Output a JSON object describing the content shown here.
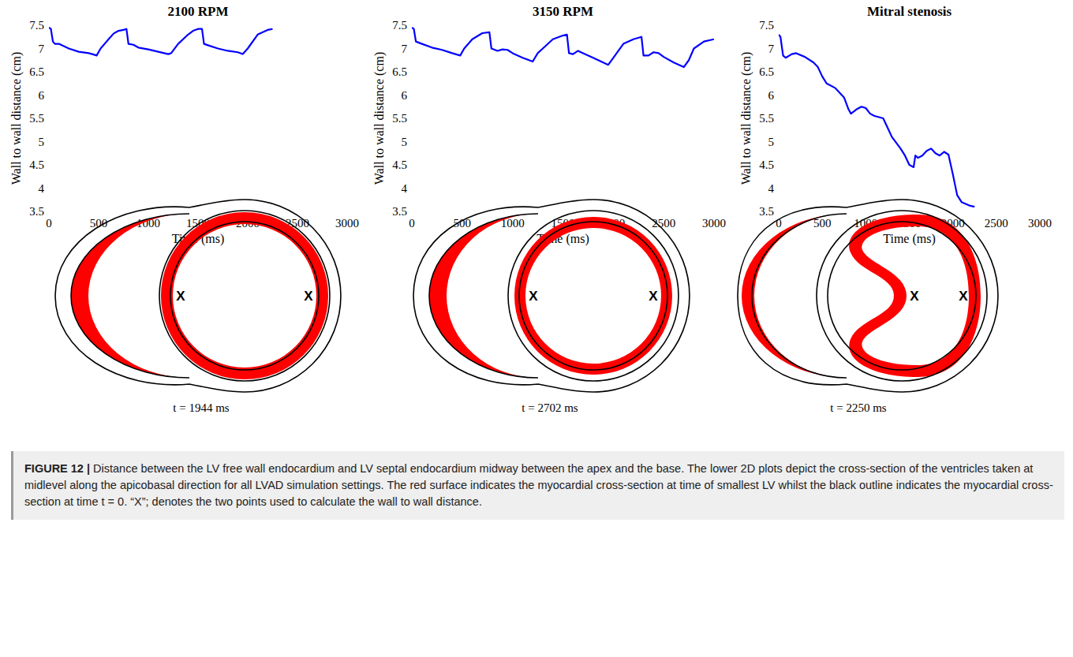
{
  "chart_data": [
    {
      "type": "line",
      "title": "2100 RPM",
      "xlabel": "Time (ms)",
      "ylabel": "Wall to wall distance (cm)",
      "color": "#0000ff",
      "xlim": [
        0,
        3000
      ],
      "ylim": [
        3.5,
        7.5
      ],
      "xticks": [
        0,
        500,
        1000,
        1500,
        2000,
        2500,
        3000
      ],
      "yticks": [
        3.5,
        4,
        4.5,
        5,
        5.5,
        6,
        6.5,
        7,
        7.5
      ],
      "grid": false,
      "x": [
        0,
        20,
        40,
        60,
        100,
        150,
        200,
        300,
        400,
        450,
        480,
        520,
        560,
        600,
        650,
        700,
        750,
        780,
        800,
        850,
        900,
        1000,
        1100,
        1200,
        1230,
        1300,
        1400,
        1450,
        1500,
        1540,
        1560,
        1600,
        1700,
        1800,
        1900,
        1950,
        2000,
        2100,
        2200,
        2250
      ],
      "values": [
        7.45,
        7.42,
        7.15,
        7.1,
        7.1,
        7.05,
        7.0,
        6.93,
        6.9,
        6.87,
        6.85,
        7.0,
        7.1,
        7.2,
        7.32,
        7.38,
        7.4,
        7.42,
        7.1,
        7.08,
        7.02,
        6.98,
        6.93,
        6.88,
        6.9,
        7.1,
        7.3,
        7.38,
        7.42,
        7.42,
        7.1,
        7.07,
        7.0,
        6.95,
        6.92,
        6.88,
        7.0,
        7.3,
        7.4,
        7.42
      ]
    },
    {
      "type": "line",
      "title": "3150 RPM",
      "xlabel": "Time (ms)",
      "ylabel": "Wall to wall distance (cm)",
      "color": "#0000ff",
      "xlim": [
        0,
        3000
      ],
      "ylim": [
        3.5,
        7.5
      ],
      "xticks": [
        0,
        500,
        1000,
        1500,
        2000,
        2500,
        3000
      ],
      "yticks": [
        3.5,
        4,
        4.5,
        5,
        5.5,
        6,
        6.5,
        7,
        7.5
      ],
      "grid": false,
      "x": [
        0,
        20,
        40,
        100,
        200,
        300,
        400,
        480,
        520,
        600,
        700,
        770,
        790,
        850,
        900,
        950,
        1000,
        1100,
        1200,
        1250,
        1300,
        1400,
        1500,
        1540,
        1560,
        1600,
        1650,
        1700,
        1800,
        1900,
        1950,
        2000,
        2100,
        2200,
        2280,
        2300,
        2350,
        2400,
        2450,
        2500,
        2600,
        2700,
        2750,
        2800,
        2900,
        3000
      ],
      "values": [
        7.45,
        7.42,
        7.15,
        7.1,
        7.02,
        6.97,
        6.9,
        6.85,
        7.0,
        7.2,
        7.33,
        7.35,
        7.0,
        6.95,
        6.98,
        6.97,
        6.9,
        6.8,
        6.72,
        6.9,
        7.0,
        7.2,
        7.28,
        7.3,
        6.9,
        6.88,
        6.95,
        6.9,
        6.8,
        6.7,
        6.65,
        6.8,
        7.1,
        7.2,
        7.25,
        6.85,
        6.85,
        6.92,
        6.9,
        6.82,
        6.7,
        6.6,
        6.75,
        7.0,
        7.15,
        7.2
      ]
    },
    {
      "type": "line",
      "title": "Mitral stenosis",
      "xlabel": "Time (ms)",
      "ylabel": "Wall to wall distance (cm)",
      "color": "#0000ff",
      "xlim": [
        0,
        3000
      ],
      "ylim": [
        3.5,
        7.5
      ],
      "xticks": [
        0,
        500,
        1000,
        1500,
        2000,
        2500,
        3000
      ],
      "yticks": [
        3.5,
        4,
        4.5,
        5,
        5.5,
        6,
        6.5,
        7,
        7.5
      ],
      "grid": false,
      "x": [
        0,
        20,
        50,
        80,
        150,
        200,
        300,
        400,
        450,
        500,
        550,
        650,
        750,
        800,
        830,
        900,
        950,
        1000,
        1050,
        1100,
        1200,
        1250,
        1300,
        1400,
        1450,
        1500,
        1550,
        1570,
        1600,
        1650,
        1700,
        1750,
        1800,
        1850,
        1900,
        1950,
        2000,
        2050,
        2100,
        2200,
        2250
      ],
      "values": [
        7.3,
        7.25,
        6.85,
        6.8,
        6.88,
        6.9,
        6.82,
        6.7,
        6.6,
        6.4,
        6.25,
        6.15,
        5.95,
        5.7,
        5.6,
        5.7,
        5.75,
        5.72,
        5.6,
        5.55,
        5.5,
        5.3,
        5.1,
        4.85,
        4.7,
        4.5,
        4.45,
        4.7,
        4.65,
        4.7,
        4.8,
        4.85,
        4.75,
        4.7,
        4.78,
        4.72,
        4.3,
        3.85,
        3.7,
        3.62,
        3.6
      ]
    }
  ],
  "diagrams": [
    {
      "time_label": "t = 1944 ms",
      "markers": [
        "X",
        "X"
      ]
    },
    {
      "time_label": "t = 2702 ms",
      "markers": [
        "X",
        "X"
      ]
    },
    {
      "time_label": "t = 2250 ms",
      "markers": [
        "X",
        "X"
      ]
    }
  ],
  "caption": {
    "label": "FIGURE 12 |",
    "text": "Distance between the LV free wall endocardium and LV septal endocardium midway between the apex and the base. The lower 2D plots depict the cross-section of the ventricles taken at midlevel along the apicobasal direction for all LVAD simulation settings. The red surface indicates the myocardial cross-section at time of smallest LV whilst the black outline indicates the myocardial cross-section at time t = 0. “X”; denotes the two points used to calculate the wall to wall distance."
  }
}
